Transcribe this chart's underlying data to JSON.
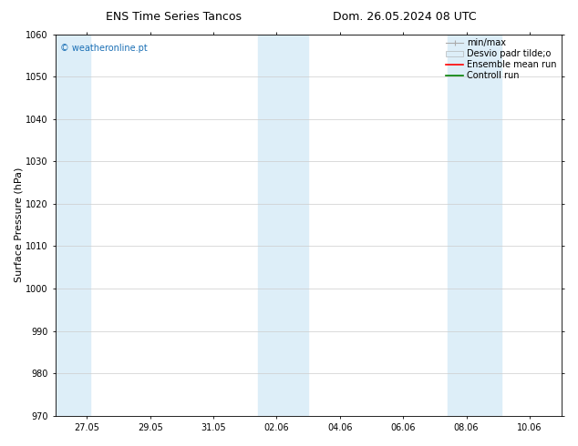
{
  "title_left": "ENS Time Series Tancos",
  "title_right": "Dom. 26.05.2024 08 UTC",
  "ylabel": "Surface Pressure (hPa)",
  "ylim": [
    970,
    1060
  ],
  "yticks": [
    970,
    980,
    990,
    1000,
    1010,
    1020,
    1030,
    1040,
    1050,
    1060
  ],
  "xtick_labels": [
    "27.05",
    "29.05",
    "31.05",
    "02.06",
    "04.06",
    "06.06",
    "08.06",
    "10.06"
  ],
  "xtick_positions": [
    1,
    3,
    5,
    7,
    9,
    11,
    13,
    15
  ],
  "xlim": [
    0,
    16
  ],
  "shaded_bands": [
    {
      "x_start": -0.1,
      "x_end": 1.1,
      "color": "#ddeef8"
    },
    {
      "x_start": 6.4,
      "x_end": 8.0,
      "color": "#ddeef8"
    },
    {
      "x_start": 12.4,
      "x_end": 14.1,
      "color": "#ddeef8"
    }
  ],
  "watermark_text": "© weatheronline.pt",
  "watermark_color": "#1a6fb5",
  "legend_labels": [
    "min/max",
    "Desvio padr tilde;o",
    "Ensemble mean run",
    "Controll run"
  ],
  "legend_colors": [
    "#aaaaaa",
    "#ddeef8",
    "red",
    "green"
  ],
  "background_color": "#ffffff",
  "plot_bg_color": "#ffffff",
  "grid_color": "#cccccc",
  "title_fontsize": 9,
  "tick_fontsize": 7,
  "ylabel_fontsize": 8,
  "legend_fontsize": 7,
  "watermark_fontsize": 7
}
